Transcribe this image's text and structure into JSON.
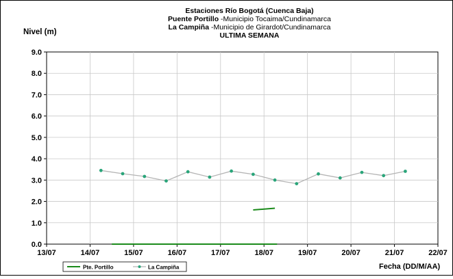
{
  "chart_data": {
    "type": "line",
    "title_lines": [
      {
        "bold": "Estaciones Río Bogotá (Cuenca Baja)",
        "normal": ""
      },
      {
        "bold": "Puente Portillo",
        "normal": " -Municipio Tocaima/Cundinamarca"
      },
      {
        "bold": "La Campiña",
        "normal": " -Municipio de Girardot/Cundinamarca"
      },
      {
        "bold": "ULTIMA SEMANA",
        "normal": ""
      }
    ],
    "ylabel": "Nivel (m)",
    "xlabel": "Fecha (DD/M/AA)",
    "ylim": [
      0,
      9
    ],
    "yticks": [
      "0.0",
      "1.0",
      "2.0",
      "3.0",
      "4.0",
      "5.0",
      "6.0",
      "7.0",
      "8.0",
      "9.0"
    ],
    "xlim": [
      0,
      9
    ],
    "xticks": [
      "13/07",
      "14/07",
      "15/07",
      "16/07",
      "17/07",
      "18/07",
      "19/07",
      "20/07",
      "21/07",
      "22/07"
    ],
    "grid": {
      "x": true,
      "y": true
    },
    "legend_position": "bottom-left",
    "series": [
      {
        "name": "Pte. Portillo",
        "color": "#1a8a1a",
        "marker": false,
        "segments": [
          [
            [
              1.5,
              0.0
            ],
            [
              5.3,
              0.0
            ]
          ],
          [
            [
              4.75,
              1.6
            ],
            [
              5.25,
              1.68
            ]
          ]
        ]
      },
      {
        "name": "La Campiña",
        "color": "#b4b4b4",
        "marker_color": "#2aa57a",
        "marker": true,
        "points": [
          [
            1.25,
            3.45
          ],
          [
            1.75,
            3.3
          ],
          [
            2.25,
            3.17
          ],
          [
            2.75,
            2.96
          ],
          [
            3.25,
            3.39
          ],
          [
            3.75,
            3.14
          ],
          [
            4.25,
            3.42
          ],
          [
            4.75,
            3.27
          ],
          [
            5.25,
            3.0
          ],
          [
            5.75,
            2.83
          ],
          [
            6.25,
            3.29
          ],
          [
            6.75,
            3.1
          ],
          [
            7.25,
            3.36
          ],
          [
            7.75,
            3.21
          ],
          [
            8.25,
            3.41
          ]
        ]
      }
    ]
  }
}
